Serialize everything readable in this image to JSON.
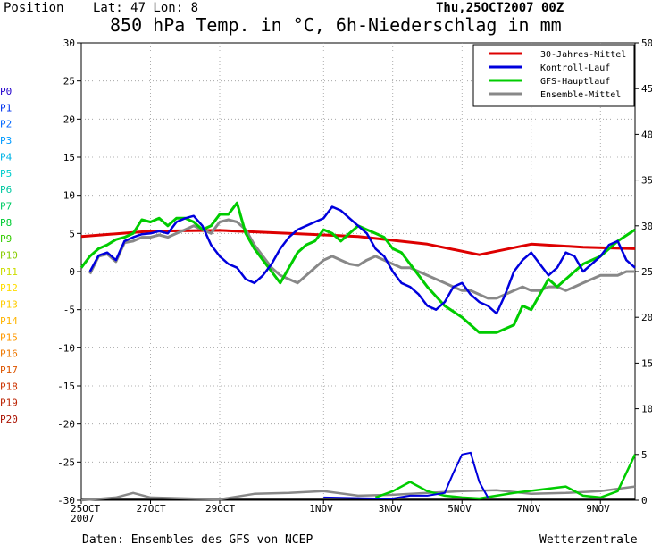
{
  "header": {
    "position_label": "Position",
    "coords": "Lat: 47  Lon: 8",
    "run": "Thu,25OCT2007 00Z",
    "title": "850 hPa Temp. in °C, 6h-Niederschlag in mm"
  },
  "footer": {
    "source": "Daten: Ensembles des GFS von NCEP",
    "brand": "Wetterzentrale"
  },
  "members": [
    {
      "label": "P0",
      "color": "#2200cc"
    },
    {
      "label": "P1",
      "color": "#0033ee"
    },
    {
      "label": "P2",
      "color": "#0066ff"
    },
    {
      "label": "P3",
      "color": "#0099ff"
    },
    {
      "label": "P4",
      "color": "#00b4e6"
    },
    {
      "label": "P5",
      "color": "#00cccc"
    },
    {
      "label": "P6",
      "color": "#00c8a0"
    },
    {
      "label": "P7",
      "color": "#00cc66"
    },
    {
      "label": "P8",
      "color": "#00cc33"
    },
    {
      "label": "P9",
      "color": "#33cc00"
    },
    {
      "label": "P10",
      "color": "#88cc00"
    },
    {
      "label": "P11",
      "color": "#ccdd00"
    },
    {
      "label": "P12",
      "color": "#ffdd00"
    },
    {
      "label": "P13",
      "color": "#ffcc00"
    },
    {
      "label": "P14",
      "color": "#ffb400"
    },
    {
      "label": "P15",
      "color": "#ff9900"
    },
    {
      "label": "P16",
      "color": "#ee7700"
    },
    {
      "label": "P17",
      "color": "#dd5500"
    },
    {
      "label": "P18",
      "color": "#cc3300"
    },
    {
      "label": "P19",
      "color": "#bb2200"
    },
    {
      "label": "P20",
      "color": "#aa1100"
    }
  ],
  "chart_data": {
    "type": "line",
    "xlabel": "",
    "ylabel_left": "",
    "ylabel_right": "",
    "x_range_hours": [
      0,
      384
    ],
    "x_ticks": [
      {
        "label": "25OCT",
        "label2": "2007",
        "hour": 0
      },
      {
        "label": "27OCT",
        "hour": 48
      },
      {
        "label": "29OCT",
        "hour": 96
      },
      {
        "label": "1NOV",
        "hour": 168
      },
      {
        "label": "3NOV",
        "hour": 216
      },
      {
        "label": "5NOV",
        "hour": 264
      },
      {
        "label": "7NOV",
        "hour": 312
      },
      {
        "label": "9NOV",
        "hour": 360
      }
    ],
    "y_left": {
      "min": -30,
      "max": 30,
      "step": 5
    },
    "y_right": {
      "min": 0,
      "max": 50,
      "step": 5
    },
    "grid": true,
    "legend_position": "top-right",
    "legend": [
      {
        "name": "30-Jahres-Mittel",
        "color": "#dd0000"
      },
      {
        "name": "Kontroll-Lauf",
        "color": "#0000dd"
      },
      {
        "name": "GFS-Hauptlauf",
        "color": "#00cc00"
      },
      {
        "name": "Ensemble-Mittel",
        "color": "#888888"
      }
    ],
    "series": [
      {
        "name": "30-Jahres-Mittel",
        "color": "#dd0000",
        "width": 3,
        "hours": [
          0,
          48,
          96,
          144,
          192,
          240,
          276,
          312,
          348,
          384
        ],
        "temp": [
          4.6,
          5.3,
          5.4,
          5.0,
          4.6,
          3.6,
          2.2,
          3.6,
          3.2,
          3.0
        ]
      },
      {
        "name": "Kontroll-Lauf",
        "color": "#0000dd",
        "width": 2.5,
        "hours": [
          6,
          12,
          18,
          24,
          30,
          36,
          42,
          48,
          54,
          60,
          66,
          72,
          78,
          84,
          90,
          96,
          102,
          108,
          114,
          120,
          126,
          132,
          138,
          144,
          150,
          156,
          162,
          168,
          174,
          180,
          186,
          192,
          198,
          204,
          210,
          216,
          222,
          228,
          234,
          240,
          246,
          252,
          258,
          264,
          270,
          276,
          282,
          288,
          294,
          300,
          306,
          312,
          318,
          324,
          330,
          336,
          342,
          348,
          354,
          360,
          366,
          372,
          378,
          384
        ],
        "temp": [
          0,
          2.1,
          2.5,
          1.5,
          4.0,
          4.5,
          4.9,
          5.0,
          5.3,
          5.0,
          6.5,
          7.0,
          7.3,
          6.0,
          3.5,
          2.0,
          1.0,
          0.5,
          -1.0,
          -1.5,
          -0.5,
          1.0,
          3.0,
          4.5,
          5.5,
          6.0,
          6.5,
          7.0,
          8.5,
          8.0,
          7.0,
          6.0,
          5.0,
          3.0,
          2.0,
          0.0,
          -1.5,
          -2.0,
          -3.0,
          -4.5,
          -5.0,
          -4.0,
          -2.0,
          -1.5,
          -3.0,
          -4.0,
          -4.5,
          -5.5,
          -3.0,
          0.0,
          1.5,
          2.5,
          1.0,
          -0.5,
          0.5,
          2.5,
          2.0,
          0.0,
          1.0,
          2.0,
          3.5,
          4.0,
          1.5,
          0.5
        ],
        "precip_hours": [
          168,
          204,
          216,
          228,
          240,
          252,
          258,
          264,
          270,
          276,
          282
        ],
        "precip_mm": [
          0.3,
          0.2,
          0.2,
          0.5,
          0.5,
          0.8,
          3.0,
          5.0,
          5.2,
          2.0,
          0.3
        ]
      },
      {
        "name": "GFS-Hauptlauf",
        "color": "#00cc00",
        "width": 3,
        "hours": [
          0,
          6,
          12,
          18,
          24,
          30,
          36,
          42,
          48,
          54,
          60,
          66,
          72,
          78,
          84,
          90,
          96,
          102,
          108,
          114,
          120,
          126,
          132,
          138,
          144,
          150,
          156,
          162,
          168,
          174,
          180,
          186,
          192,
          198,
          204,
          210,
          216,
          222,
          228,
          234,
          240,
          252,
          264,
          276,
          288,
          300,
          306,
          312,
          318,
          324,
          330,
          336,
          342,
          348,
          360,
          372,
          384
        ],
        "temp": [
          0.5,
          2.0,
          3.0,
          3.5,
          4.2,
          4.5,
          5.0,
          6.8,
          6.5,
          7.0,
          6.0,
          7.0,
          7.0,
          6.5,
          5.5,
          6.0,
          7.5,
          7.5,
          9.0,
          5.0,
          3.0,
          1.5,
          0.0,
          -1.5,
          0.5,
          2.5,
          3.5,
          4.0,
          5.5,
          5.0,
          4.0,
          5.0,
          6.0,
          5.5,
          5.0,
          4.5,
          3.0,
          2.5,
          1.0,
          -0.5,
          -2.0,
          -4.5,
          -6.0,
          -8.0,
          -8.0,
          -7.0,
          -4.5,
          -5.0,
          -3.0,
          -1.0,
          -2.0,
          -1.0,
          0.0,
          1.0,
          2.0,
          4.0,
          5.5
        ],
        "precip_hours": [
          204,
          216,
          228,
          240,
          252,
          264,
          276,
          288,
          300,
          336,
          348,
          360,
          372,
          384
        ],
        "precip_mm": [
          0.3,
          1.0,
          2.0,
          1.0,
          0.5,
          0.3,
          0.2,
          0.5,
          0.8,
          1.5,
          0.5,
          0.3,
          1.0,
          5.0
        ]
      },
      {
        "name": "Ensemble-Mittel",
        "color": "#888888",
        "width": 3,
        "hours": [
          6,
          12,
          18,
          24,
          30,
          36,
          42,
          48,
          54,
          60,
          66,
          72,
          78,
          84,
          90,
          96,
          102,
          108,
          114,
          120,
          126,
          132,
          138,
          144,
          150,
          156,
          162,
          168,
          174,
          180,
          186,
          192,
          198,
          204,
          210,
          216,
          222,
          228,
          234,
          240,
          246,
          252,
          258,
          264,
          270,
          276,
          282,
          288,
          294,
          300,
          306,
          312,
          318,
          324,
          330,
          336,
          342,
          348,
          354,
          360,
          366,
          372,
          378,
          384
        ],
        "temp": [
          -0.3,
          2.0,
          2.3,
          1.3,
          3.8,
          4.0,
          4.5,
          4.5,
          4.8,
          4.5,
          5.0,
          5.5,
          6.0,
          5.5,
          5.0,
          6.5,
          6.8,
          6.5,
          5.5,
          3.5,
          2.0,
          0.5,
          -0.5,
          -1.0,
          -1.5,
          -0.5,
          0.5,
          1.5,
          2.0,
          1.5,
          1.0,
          0.8,
          1.5,
          2.0,
          1.5,
          1.0,
          0.5,
          0.5,
          0.0,
          -0.5,
          -1.0,
          -1.5,
          -2.0,
          -2.5,
          -2.5,
          -3.0,
          -3.5,
          -3.5,
          -3.0,
          -2.5,
          -2.0,
          -2.5,
          -2.5,
          -2.0,
          -2.0,
          -2.5,
          -2.0,
          -1.5,
          -1.0,
          -0.5,
          -0.5,
          -0.5,
          0.0,
          0.0
        ],
        "precip_hours": [
          0,
          24,
          36,
          48,
          96,
          120,
          144,
          168,
          192,
          216,
          240,
          264,
          288,
          312,
          336,
          360,
          384
        ],
        "precip_mm": [
          0.0,
          0.3,
          0.8,
          0.3,
          0.1,
          0.7,
          0.8,
          1.0,
          0.5,
          0.6,
          0.8,
          1.0,
          1.1,
          0.7,
          0.8,
          1.0,
          1.5
        ]
      }
    ]
  }
}
